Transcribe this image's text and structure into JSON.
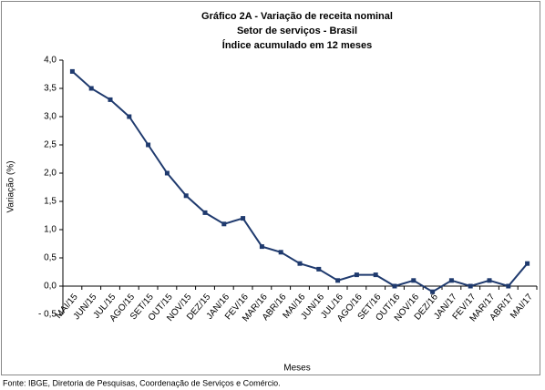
{
  "chart_data": {
    "type": "line",
    "title": "Gráfico 2A - Variação de receita nominal",
    "subtitle": "Setor de serviços - Brasil",
    "subtitle2": "Índice acumulado em 12 meses",
    "ylabel": "Variação (%)",
    "xlabel": "Meses",
    "source": "Fonte: IBGE, Diretoria de Pesquisas, Coordenação de Serviços e Comércio.",
    "categories": [
      "MAI/15",
      "JUN/15",
      "JUL/15",
      "AGO/15",
      "SET/15",
      "OUT/15",
      "NOV/15",
      "DEZ/15",
      "JAN/16",
      "FEV/16",
      "MAR/16",
      "ABR/16",
      "MAI/16",
      "JUN/16",
      "JUL/16",
      "AGO/16",
      "SET/16",
      "OUT/16",
      "NOV/16",
      "DEZ/16",
      "JAN/17",
      "FEV/17",
      "MAR/17",
      "ABR/17",
      "MAI/17"
    ],
    "values": [
      3.8,
      3.5,
      3.3,
      3.0,
      2.5,
      2.0,
      1.6,
      1.3,
      1.1,
      1.2,
      0.7,
      0.6,
      0.4,
      0.3,
      0.1,
      0.2,
      0.2,
      0.0,
      0.1,
      -0.1,
      0.1,
      0.0,
      0.1,
      0.0,
      0.4
    ],
    "color": "#1f3a6e",
    "ylim": [
      -0.5,
      4.0
    ],
    "yticks": [
      {
        "value": -0.5,
        "label": "- 0,5"
      },
      {
        "value": 0,
        "label": "0,0"
      },
      {
        "value": 0.5,
        "label": "0,5"
      },
      {
        "value": 1.0,
        "label": "1,0"
      },
      {
        "value": 1.5,
        "label": "1,5"
      },
      {
        "value": 2.0,
        "label": "2,0"
      },
      {
        "value": 2.5,
        "label": "2,5"
      },
      {
        "value": 3.0,
        "label": "3,0"
      },
      {
        "value": 3.5,
        "label": "3,5"
      },
      {
        "value": 4.0,
        "label": "4,0"
      }
    ],
    "grid": false
  }
}
